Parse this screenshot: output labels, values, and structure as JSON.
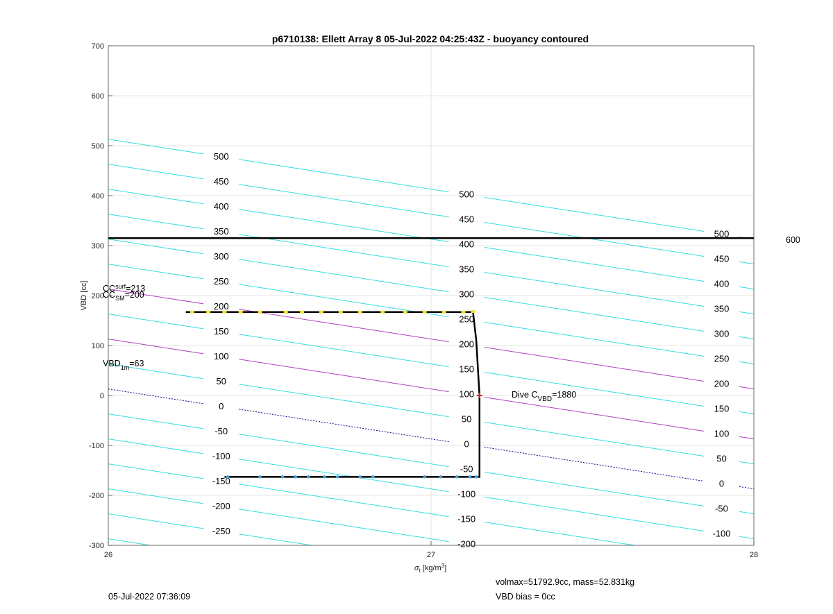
{
  "chart_data": {
    "type": "line",
    "title": "p6710138: Ellett Array 8 05-Jul-2022 04:25:43Z - buoyancy contoured",
    "xlabel": "σt [kg/m³]",
    "ylabel": "VBD [cc]",
    "xlim": [
      26,
      28
    ],
    "ylim": [
      -300,
      700
    ],
    "xticks": [
      26,
      27,
      28
    ],
    "yticks": [
      -300,
      -200,
      -100,
      0,
      100,
      200,
      300,
      400,
      500,
      600,
      700
    ],
    "grid": true,
    "buoyancy_contours": {
      "levels": [
        -300,
        -250,
        -200,
        -150,
        -100,
        -50,
        0,
        50,
        100,
        150,
        200,
        250,
        300,
        350,
        400,
        450,
        500
      ],
      "slope_cc_per_sigma": -100,
      "offset_cc": 2613,
      "zero_contour_color": "#00008b",
      "highlight_levels": [
        200,
        100
      ],
      "highlight_color": "#b040c0",
      "color": "#33dde0"
    },
    "limit_line": {
      "vbd": 315,
      "label": "600",
      "color": "#000000"
    },
    "series": [
      {
        "color": "#000000",
        "x": [
          26.24,
          27.13,
          27.14,
          27.15,
          27.15,
          26.36
        ],
        "y": [
          167,
          167,
          110,
          0,
          -163,
          -163
        ]
      }
    ],
    "markers_top": {
      "color": "#f2e03a",
      "x": [
        26.26,
        26.31,
        26.36,
        26.41,
        26.47,
        26.55,
        26.6,
        26.66,
        26.72,
        26.78,
        26.85,
        26.92,
        26.98,
        27.04,
        27.1,
        27.13
      ],
      "y": [
        167,
        167,
        167,
        167,
        167,
        167,
        167,
        167,
        167,
        167,
        167,
        167,
        167,
        167,
        167,
        168
      ]
    },
    "markers_bottom": {
      "color": "#4aa8e0",
      "x": [
        26.37,
        26.47,
        26.54,
        26.58,
        26.62,
        26.67,
        26.71,
        26.78,
        26.82,
        26.98,
        27.03,
        27.08,
        27.12,
        27.14
      ],
      "y": [
        -163,
        -163,
        -163,
        -163,
        -163,
        -163,
        -163,
        -163,
        -163,
        -163,
        -163,
        -163,
        -163,
        -163
      ]
    },
    "center_marker": {
      "x": 27.15,
      "y": 0,
      "color": "#e02020"
    },
    "annotations": {
      "cc_surf": {
        "main": "CC",
        "sub": "surf",
        "value": "=213"
      },
      "cc_sm": {
        "main": "CC",
        "sub": "SM",
        "value": "=200"
      },
      "vbd_1m": {
        "main": "VBD",
        "sub": "1m",
        "value": "=63"
      },
      "dive_cvbd": {
        "main": "Dive C",
        "sub": "VBD",
        "value": "=1880"
      }
    },
    "footer": {
      "timestamp": "05-Jul-2022 07:36:09",
      "volmax": "volmax=51792.9cc, mass=52.831kg",
      "vbd_bias": "VBD bias = 0cc"
    }
  }
}
